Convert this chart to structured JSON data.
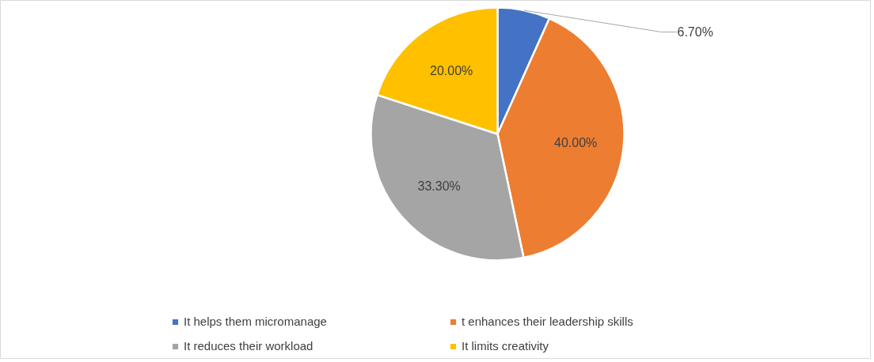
{
  "chart_data": {
    "type": "pie",
    "categories": [
      "It helps them micromanage",
      "t enhances their leadership skills",
      "It reduces their workload",
      "It limits creativity"
    ],
    "values": [
      6.7,
      40,
      33.3,
      20
    ],
    "colors": [
      "#4472c4",
      "#ed7d31",
      "#a5a5a5",
      "#ffc000"
    ],
    "value_labels": [
      "6.70%",
      "40.00%",
      "33.30%",
      "20.00%"
    ],
    "legend": "bottom"
  }
}
